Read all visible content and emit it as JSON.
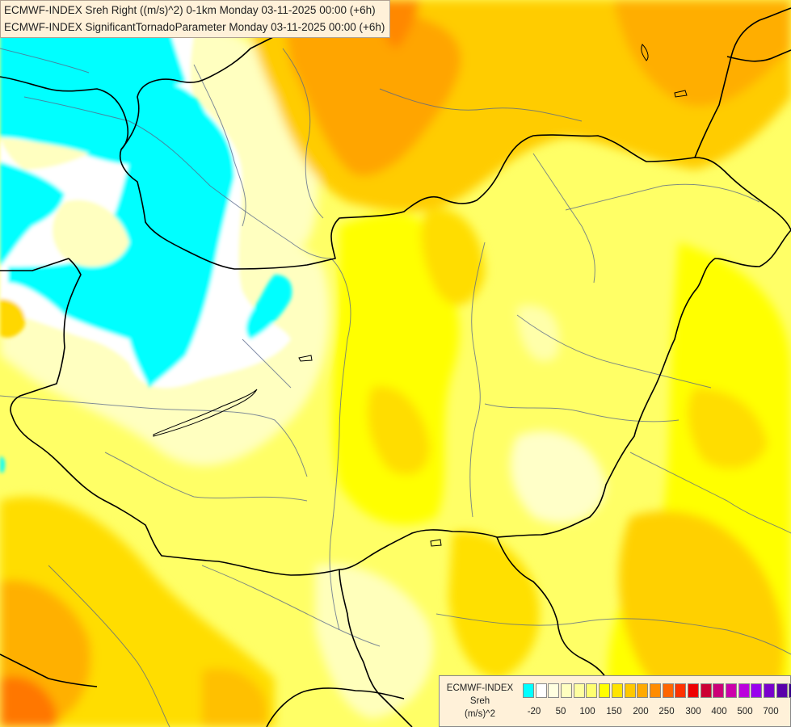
{
  "header": {
    "line1": "ECMWF-INDEX Sreh Right ((m/s)^2) 0-1km Monday 03-11-2025 00:00 (+6h)",
    "line2": "ECMWF-INDEX SignificantTornadoParameter Monday 03-11-2025 00:00 (+6h)"
  },
  "legend": {
    "title_line1": "ECMWF-INDEX",
    "title_line2": "Sreh",
    "title_line3": "(m/s)^2",
    "colors": [
      "#00ffff",
      "#ffffff",
      "#ffffe0",
      "#ffffc0",
      "#ffffa0",
      "#ffff70",
      "#ffff00",
      "#ffe400",
      "#ffc800",
      "#ffaa00",
      "#ff8c00",
      "#ff6600",
      "#ff3300",
      "#ee0000",
      "#cc0033",
      "#cc0077",
      "#cc00aa",
      "#bb00dd",
      "#9900ee",
      "#7a00cc",
      "#5a00aa",
      "#330088",
      "#000080"
    ],
    "tick_labels": [
      "-20",
      "50",
      "100",
      "150",
      "200",
      "250",
      "300",
      "400",
      "500",
      "700"
    ]
  },
  "map": {
    "colors": {
      "cyan": "#00ffff",
      "white": "#ffffff",
      "pale": "#ffffc8",
      "light_yellow": "#ffff99",
      "yellow": "#ffff00",
      "gold": "#ffd700",
      "orange_light": "#ffc000",
      "orange": "#ff9900",
      "deep_orange": "#ff5500",
      "border": "#000000",
      "river": "#556688"
    }
  }
}
